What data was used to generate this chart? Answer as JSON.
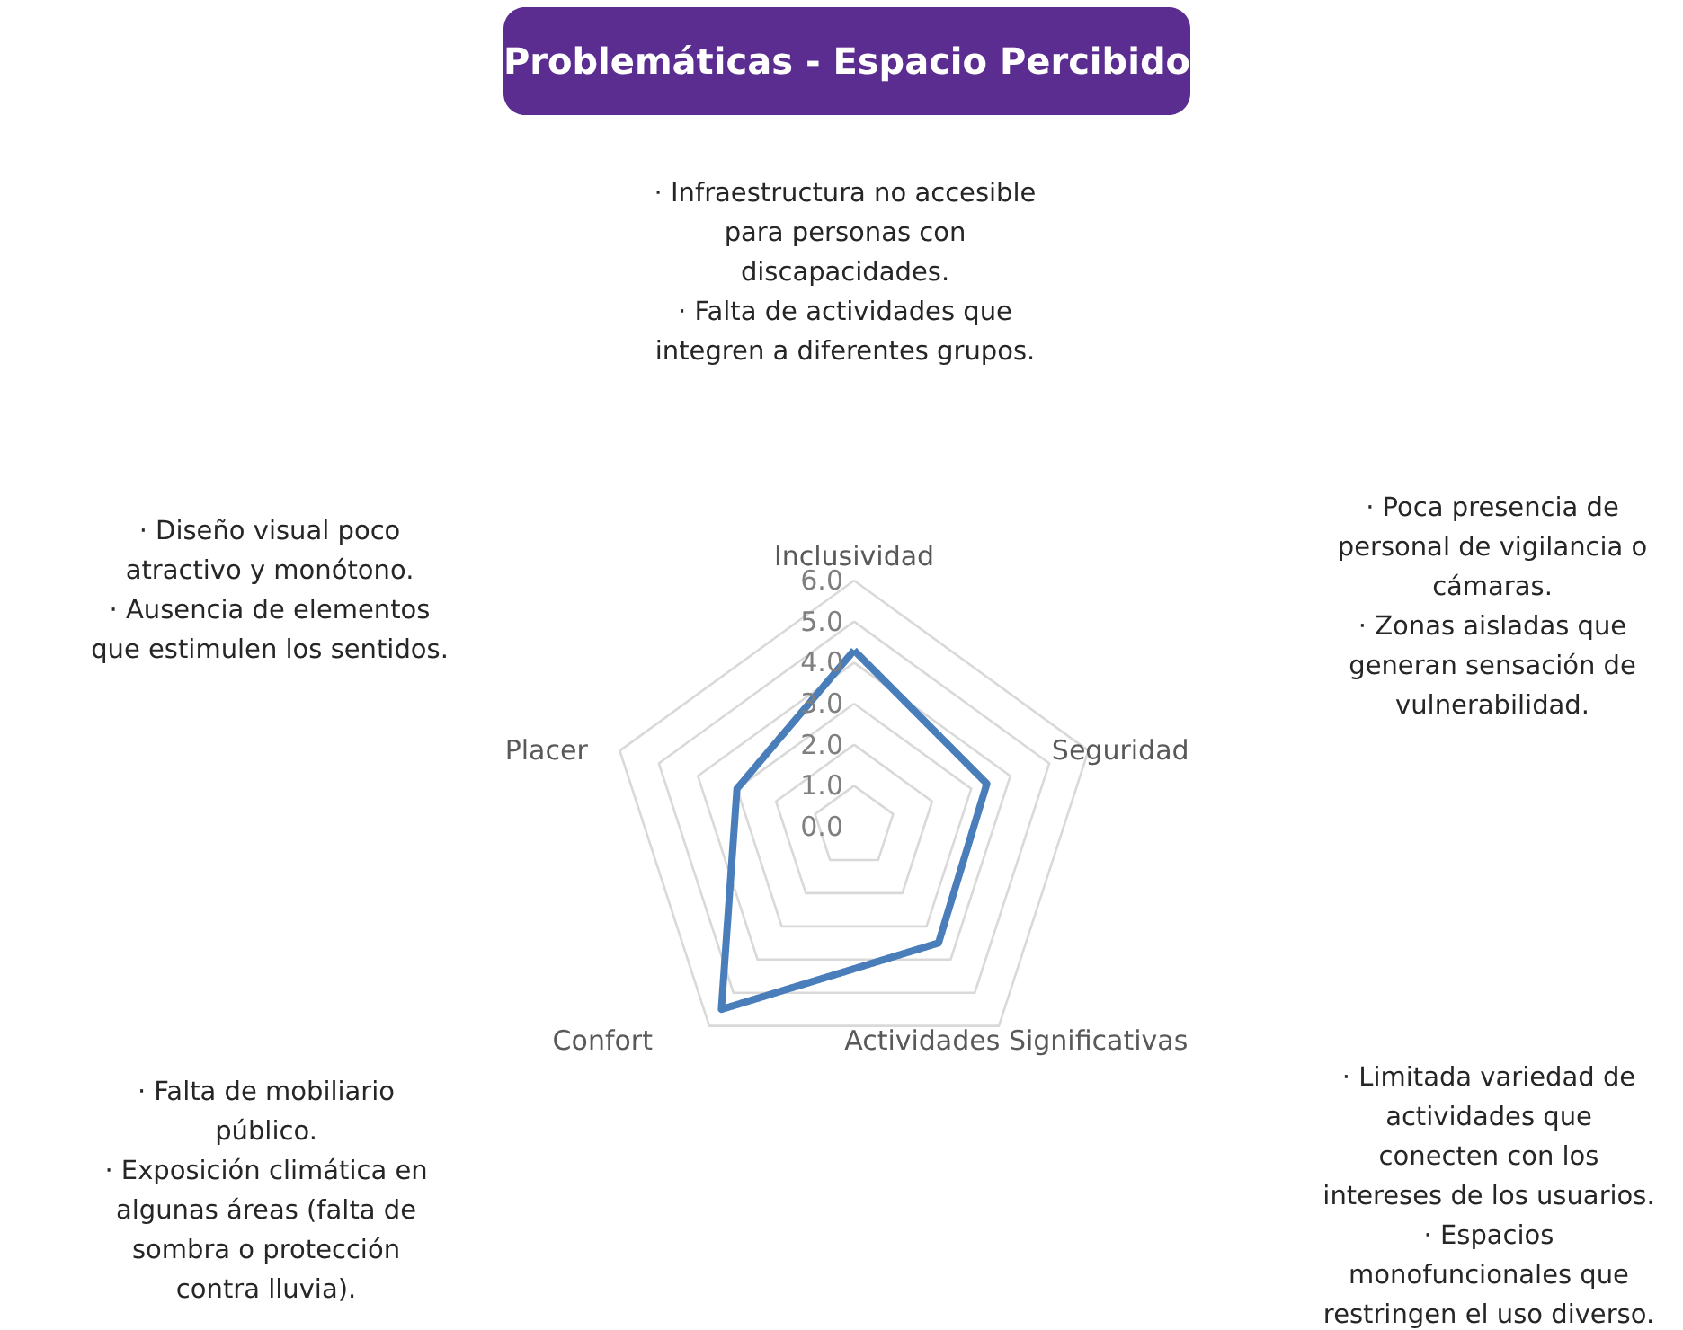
{
  "chart_data": {
    "type": "radar",
    "title": "Problemáticas - Espacio Percibido",
    "categories": [
      "Inclusividad",
      "Seguridad",
      "Actividades Significativas",
      "Confort",
      "Placer"
    ],
    "series": [
      {
        "color": "#4a7ebb",
        "values": [
          4.3,
          3.4,
          3.5,
          5.5,
          3.0
        ]
      }
    ],
    "ylim": [
      0,
      6
    ],
    "yticks": [
      {
        "value": 0,
        "label": "0.0"
      },
      {
        "value": 1,
        "label": "1.0"
      },
      {
        "value": 2,
        "label": "2.0"
      },
      {
        "value": 3,
        "label": "3.0"
      },
      {
        "value": 4,
        "label": "4.0"
      },
      {
        "value": 5,
        "label": "5.0"
      },
      {
        "value": 6,
        "label": "6.0"
      }
    ],
    "grid": true,
    "marker": "none",
    "line_style": "solid",
    "annotations": [
      "·  Infraestructura no accesible\npara personas con\ndiscapacidades.\n·  Falta de actividades que\nintegren a diferentes grupos.",
      "·  Poca presencia de\npersonal de vigilancia o\ncámaras.\n·  Zonas aisladas que\ngeneran sensación de\nvulnerabilidad.",
      "·  Limitada variedad de\nactividades que\nconecten con los\nintereses de los usuarios.\n·  Espacios\nmonofuncionales que\nrestringen el uso diverso.",
      "·  Falta de mobiliario\npúblico.\n·  Exposición climática en\nalgunas áreas (falta de\nsombra o protección\ncontra lluvia).",
      "·  Diseño visual poco\natractivo y monótono.\n·  Ausencia de elementos\nque estimulen los sentidos."
    ]
  }
}
